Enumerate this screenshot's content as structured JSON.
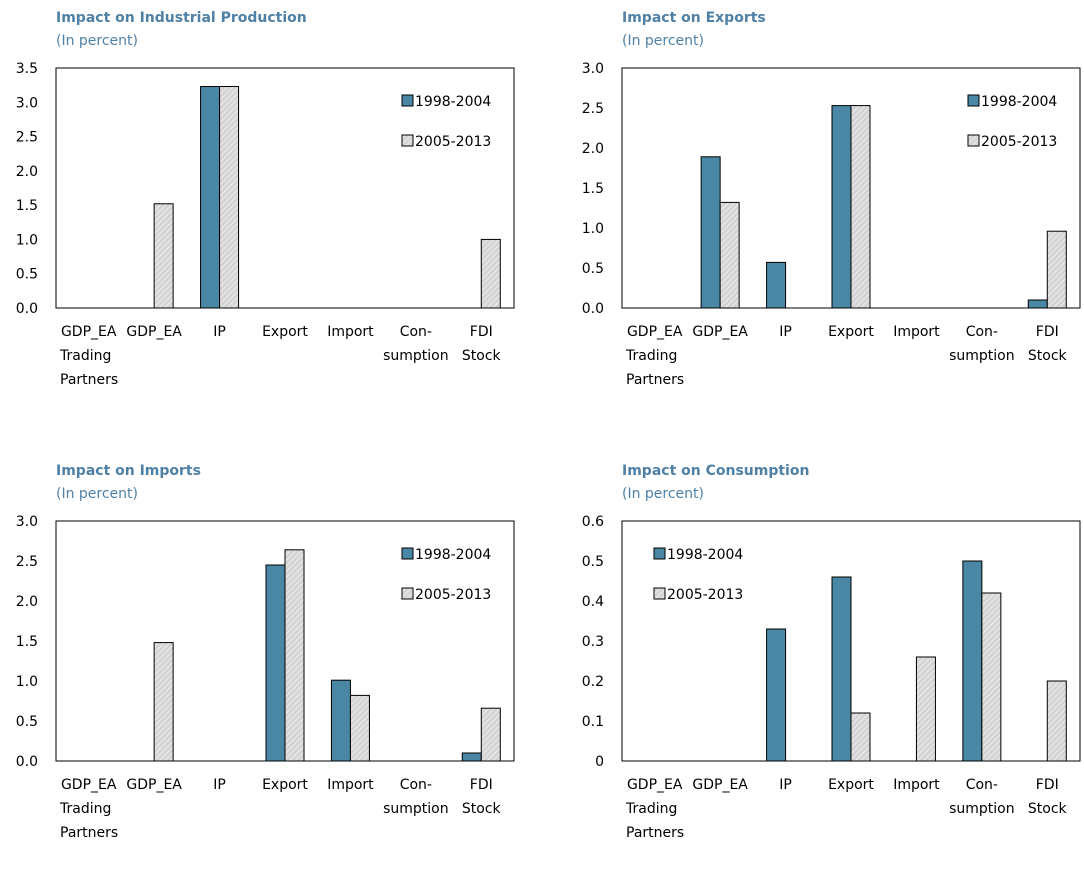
{
  "colors": {
    "series1": "#4a87a5",
    "series2": "#d4d4d4",
    "title": "#4f81a6"
  },
  "chart_data": [
    {
      "type": "bar",
      "title": "Impact on Industrial Production",
      "subtitle": "(In percent)",
      "categories": [
        [
          "GDP_EA",
          "Trading",
          "Partners"
        ],
        [
          "GDP_EA"
        ],
        [
          "IP"
        ],
        [
          "Export"
        ],
        [
          "Import"
        ],
        [
          "Con-",
          "sumption"
        ],
        [
          "FDI",
          "Stock"
        ]
      ],
      "ylim": [
        0,
        3.5
      ],
      "yticks": [
        "0.0",
        "0.5",
        "1.0",
        "1.5",
        "2.0",
        "2.5",
        "3.0",
        "3.5"
      ],
      "legend_position": "top-right",
      "series": [
        {
          "name": "1998-2004",
          "values": [
            0,
            0,
            3.23,
            0,
            0,
            0,
            0
          ]
        },
        {
          "name": "2005-2013",
          "values": [
            0,
            1.52,
            3.23,
            0,
            0,
            0,
            1.0
          ]
        }
      ]
    },
    {
      "type": "bar",
      "title": "Impact on Exports",
      "subtitle": "(In percent)",
      "categories": [
        [
          "GDP_EA",
          "Trading",
          "Partners"
        ],
        [
          "GDP_EA"
        ],
        [
          "IP"
        ],
        [
          "Export"
        ],
        [
          "Import"
        ],
        [
          "Con-",
          "sumption"
        ],
        [
          "FDI",
          "Stock"
        ]
      ],
      "ylim": [
        0,
        3.0
      ],
      "yticks": [
        "0.0",
        "0.5",
        "1.0",
        "1.5",
        "2.0",
        "2.5",
        "3.0"
      ],
      "legend_position": "top-right",
      "series": [
        {
          "name": "1998-2004",
          "values": [
            0,
            1.89,
            0.57,
            2.53,
            0,
            0,
            0.1
          ]
        },
        {
          "name": "2005-2013",
          "values": [
            0,
            1.32,
            0,
            2.53,
            0,
            0,
            0.96
          ]
        }
      ]
    },
    {
      "type": "bar",
      "title": "Impact on Imports",
      "subtitle": "(In percent)",
      "categories": [
        [
          "GDP_EA",
          "Trading",
          "Partners"
        ],
        [
          "GDP_EA"
        ],
        [
          "IP"
        ],
        [
          "Export"
        ],
        [
          "Import"
        ],
        [
          "Con-",
          "sumption"
        ],
        [
          "FDI",
          "Stock"
        ]
      ],
      "ylim": [
        0,
        3.0
      ],
      "yticks": [
        "0.0",
        "0.5",
        "1.0",
        "1.5",
        "2.0",
        "2.5",
        "3.0"
      ],
      "legend_position": "top-right",
      "series": [
        {
          "name": "1998-2004",
          "values": [
            0,
            0,
            0,
            2.45,
            1.01,
            0,
            0.1
          ]
        },
        {
          "name": "2005-2013",
          "values": [
            0,
            1.48,
            0,
            2.64,
            0.82,
            0,
            0.66
          ]
        }
      ]
    },
    {
      "type": "bar",
      "title": "Impact on Consumption",
      "subtitle": "(In percent)",
      "categories": [
        [
          "GDP_EA",
          "Trading",
          "Partners"
        ],
        [
          "GDP_EA"
        ],
        [
          "IP"
        ],
        [
          "Export"
        ],
        [
          "Import"
        ],
        [
          "Con-",
          "sumption"
        ],
        [
          "FDI",
          "Stock"
        ]
      ],
      "ylim": [
        0,
        0.6
      ],
      "yticks": [
        "0",
        "0.1",
        "0.2",
        "0.3",
        "0.4",
        "0.5",
        "0.6"
      ],
      "legend_position": "top-left",
      "series": [
        {
          "name": "1998-2004",
          "values": [
            0,
            0,
            0.33,
            0.46,
            0,
            0.5,
            0
          ]
        },
        {
          "name": "2005-2013",
          "values": [
            0,
            0,
            0,
            0.12,
            0.26,
            0.42,
            0.2
          ]
        }
      ]
    }
  ]
}
